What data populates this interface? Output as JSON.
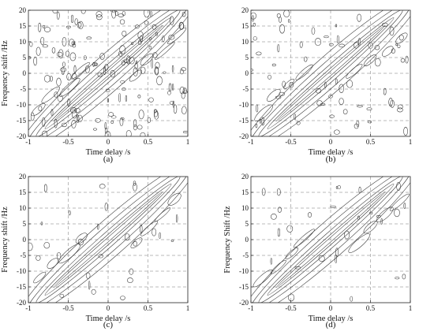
{
  "chart_data": [
    {
      "type": "contour",
      "panel": "(a)",
      "xlabel": "Time delay /s",
      "ylabel": "Frequency shift /Hz",
      "xlim": [
        -1,
        1
      ],
      "ylim": [
        -20,
        20
      ],
      "xticks": [
        "-1",
        "-0.5",
        "0",
        "0.5",
        "1"
      ],
      "yticks": [
        "-20",
        "-15",
        "-10",
        "-5",
        "0",
        "5",
        "10",
        "15",
        "20"
      ],
      "grid": true,
      "ridge": {
        "from": [
          -0.9,
          -20
        ],
        "to": [
          0.9,
          20
        ]
      },
      "noise_level": "high"
    },
    {
      "type": "contour",
      "panel": "(b)",
      "xlabel": "Time delay /s",
      "ylabel": "",
      "xlim": [
        -1,
        1
      ],
      "ylim": [
        -20,
        20
      ],
      "xticks": [
        "-1",
        "-0.5",
        "0",
        "0.5",
        "1"
      ],
      "yticks": [
        "-20",
        "-15",
        "-10",
        "-5",
        "0",
        "5",
        "10",
        "15",
        "20"
      ],
      "grid": true,
      "ridge": {
        "from": [
          -0.9,
          -20
        ],
        "to": [
          0.9,
          20
        ]
      },
      "noise_level": "medium"
    },
    {
      "type": "contour",
      "panel": "(c)",
      "xlabel": "Time delay /s",
      "ylabel": "Frequency shift /Hz",
      "xlim": [
        -1,
        1
      ],
      "ylim": [
        -20,
        20
      ],
      "xticks": [
        "-1",
        "-0.5",
        "0",
        "0.5",
        "1"
      ],
      "yticks": [
        "-20",
        "-15",
        "-10",
        "-5",
        "0",
        "5",
        "10",
        "15",
        "20"
      ],
      "grid": true,
      "ridge": {
        "from": [
          -0.9,
          -20
        ],
        "to": [
          0.9,
          20
        ]
      },
      "noise_level": "low"
    },
    {
      "type": "contour",
      "panel": "(d)",
      "xlabel": "Time delay /s",
      "ylabel": "Frequency Shift /Hz",
      "xlim": [
        -1,
        1
      ],
      "ylim": [
        -20,
        20
      ],
      "xticks": [
        "-1",
        "-0.5",
        "0",
        "0.5",
        "1"
      ],
      "yticks": [
        "-20",
        "-15",
        "-10",
        "-5",
        "0",
        "5",
        "10",
        "15",
        "20"
      ],
      "grid": true,
      "ridge": {
        "from": [
          -0.9,
          -20
        ],
        "to": [
          0.9,
          20
        ]
      },
      "noise_level": "low"
    }
  ]
}
